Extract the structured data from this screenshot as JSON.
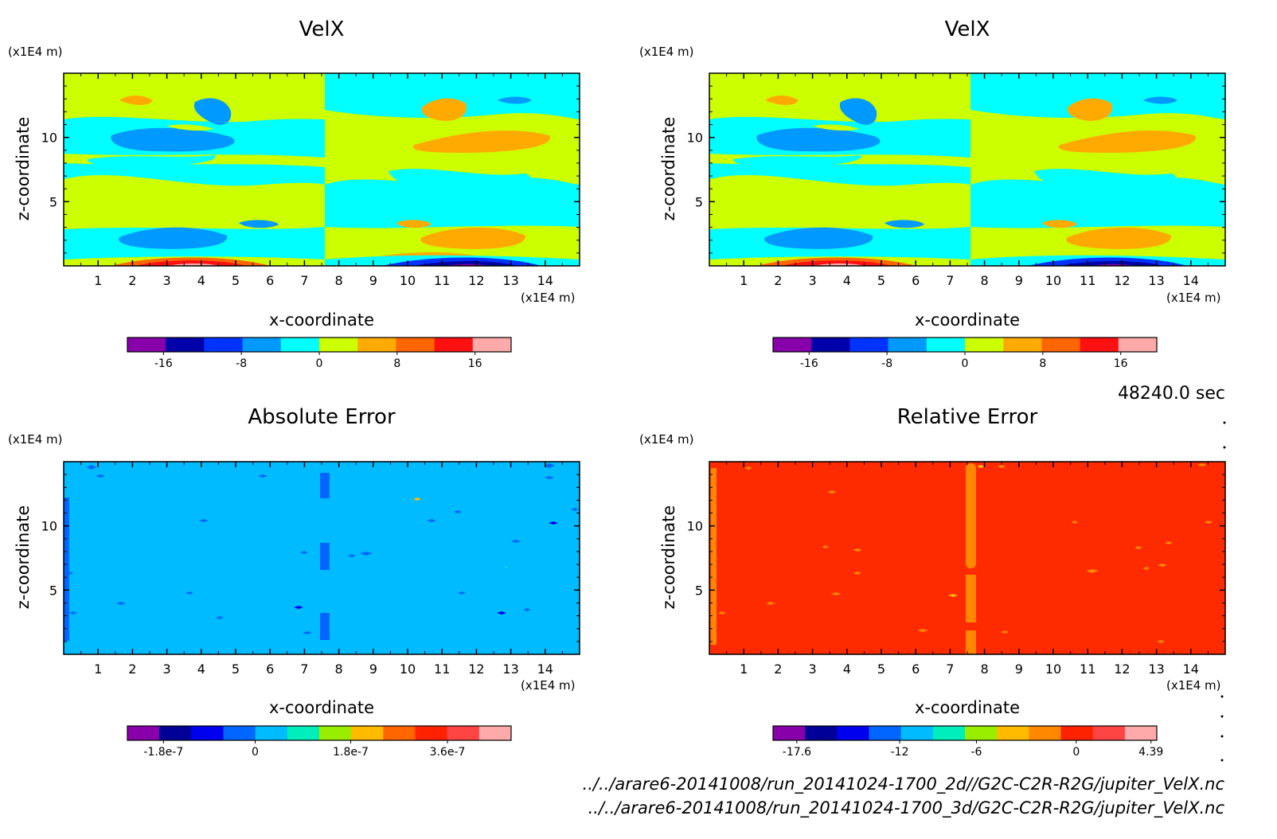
{
  "time_label": "48240.0 sec",
  "file_paths": [
    "../../arare6-20141008/run_20141024-1700_2d//G2C-C2R-R2G/jupiter_VelX.nc",
    "../../arare6-20141008/run_20141024-1700_3d/G2C-C2R-R2G/jupiter_VelX.nc"
  ],
  "chart_data": [
    {
      "type": "heatmap",
      "title": "VelX",
      "xlabel": "x-coordinate",
      "ylabel": "z-coordinate",
      "xunit": "(x1E4 m)",
      "yunit": "(x1E4 m)",
      "xticks": [
        "1",
        "2",
        "3",
        "4",
        "5",
        "6",
        "7",
        "8",
        "9",
        "10",
        "11",
        "12",
        "13",
        "14"
      ],
      "yticks": [
        "5",
        "10"
      ],
      "xlim": [
        0,
        15
      ],
      "ylim": [
        0,
        15
      ],
      "colorbar": {
        "colors": [
          "#8800aa",
          "#0000aa",
          "#0033ff",
          "#0099ff",
          "#00ffff",
          "#ccff00",
          "#ffaa00",
          "#ff6600",
          "#ff1111",
          "#ffaaaa"
        ],
        "tick_labels": [
          "-16",
          "-8",
          "0",
          "8",
          "16"
        ]
      },
      "background": "#00ffff"
    },
    {
      "type": "heatmap",
      "title": "VelX",
      "xlabel": "x-coordinate",
      "ylabel": "z-coordinate",
      "xunit": "(x1E4 m)",
      "yunit": "(x1E4 m)",
      "xticks": [
        "1",
        "2",
        "3",
        "4",
        "5",
        "6",
        "7",
        "8",
        "9",
        "10",
        "11",
        "12",
        "13",
        "14"
      ],
      "yticks": [
        "5",
        "10"
      ],
      "xlim": [
        0,
        15
      ],
      "ylim": [
        0,
        15
      ],
      "colorbar": {
        "colors": [
          "#8800aa",
          "#0000aa",
          "#0033ff",
          "#0099ff",
          "#00ffff",
          "#ccff00",
          "#ffaa00",
          "#ff6600",
          "#ff1111",
          "#ffaaaa"
        ],
        "tick_labels": [
          "-16",
          "-8",
          "0",
          "8",
          "16"
        ]
      },
      "background": "#00ffff"
    },
    {
      "type": "heatmap",
      "title": "Absolute Error",
      "xlabel": "x-coordinate",
      "ylabel": "z-coordinate",
      "xunit": "(x1E4 m)",
      "yunit": "(x1E4 m)",
      "xticks": [
        "1",
        "2",
        "3",
        "4",
        "5",
        "6",
        "7",
        "8",
        "9",
        "10",
        "11",
        "12",
        "13",
        "14"
      ],
      "yticks": [
        "5",
        "10"
      ],
      "xlim": [
        0,
        15
      ],
      "ylim": [
        0,
        15
      ],
      "colorbar": {
        "colors": [
          "#8800aa",
          "#000099",
          "#0000ee",
          "#0066ff",
          "#00bbff",
          "#00eebb",
          "#99ee00",
          "#ffbb00",
          "#ff6600",
          "#ff2200",
          "#ff4444",
          "#ffaaaa"
        ],
        "tick_labels": [
          "-1.8e-7",
          "0",
          "1.8e-7",
          "3.6e-7"
        ]
      },
      "background": "#00bbff"
    },
    {
      "type": "heatmap",
      "title": "Relative Error",
      "xlabel": "x-coordinate",
      "ylabel": "z-coordinate",
      "xunit": "(x1E4 m)",
      "yunit": "(x1E4 m)",
      "xticks": [
        "1",
        "2",
        "3",
        "4",
        "5",
        "6",
        "7",
        "8",
        "9",
        "10",
        "11",
        "12",
        "13",
        "14"
      ],
      "yticks": [
        "5",
        "10"
      ],
      "xlim": [
        0,
        15
      ],
      "ylim": [
        0,
        15
      ],
      "colorbar": {
        "colors": [
          "#8800aa",
          "#000099",
          "#0000ee",
          "#0066ff",
          "#00bbff",
          "#00eebb",
          "#99ee00",
          "#ffbb00",
          "#ff8800",
          "#ff2200",
          "#ff4444",
          "#ffaaaa"
        ],
        "tick_labels": [
          "-17.6",
          "-12",
          "-6",
          "0",
          "4.39"
        ]
      },
      "background": "#ff2b00"
    }
  ]
}
